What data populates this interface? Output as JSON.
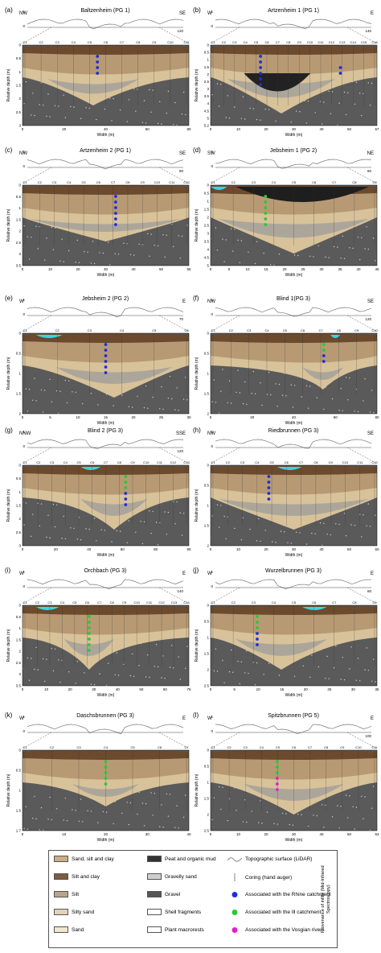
{
  "panels": [
    {
      "letter": "(a)",
      "title": "Baltzenheim (PG 1)",
      "left": "NW",
      "right": "SE",
      "coreTicks": [
        "C1",
        "C2",
        "C3",
        "C4",
        "C5",
        "C6",
        "C7",
        "C8",
        "C9",
        "C10",
        "C11"
      ],
      "xticks": [
        "0",
        "20",
        "40",
        "60",
        "80"
      ],
      "yticks": [
        "0",
        "0.5",
        "1",
        "1.5",
        "2",
        "2.5",
        "3"
      ],
      "xlabel": "Width (m)",
      "ylabel": "Relative depth (m)",
      "scaleEnd": "120",
      "ymax": "1.5"
    },
    {
      "letter": "(b)",
      "title": "Artzenheim 1 (PG 1)",
      "left": "W",
      "right": "E",
      "coreTicks": [
        "C1",
        "C2",
        "C3",
        "C4",
        "C5",
        "C6",
        "C7",
        "C8",
        "C9",
        "C10",
        "C11",
        "C12",
        "C13",
        "C14",
        "C15",
        "C16"
      ],
      "xticks": [
        "0",
        "10",
        "20",
        "30",
        "40",
        "50",
        "67"
      ],
      "yticks": [
        "0",
        "0.5",
        "1",
        "1.5",
        "2",
        "2.5",
        "3",
        "3.5",
        "4",
        "4.5",
        "5",
        "5.2"
      ],
      "xlabel": "Width (m)",
      "ylabel": "Relative depth (m)",
      "scaleEnd": "140",
      "ymax": "1"
    },
    {
      "letter": "(c)",
      "title": "Artzenheim 2 (PG 1)",
      "left": "NW",
      "right": "SE",
      "coreTicks": [
        "C1",
        "C2",
        "C3",
        "C4",
        "C5",
        "C6",
        "C7",
        "C8",
        "C9",
        "C10",
        "C11",
        "C12"
      ],
      "xticks": [
        "0",
        "10",
        "20",
        "30",
        "40",
        "50",
        "55"
      ],
      "yticks": [
        "0",
        "0.5",
        "1",
        "1.5",
        "2",
        "2.5",
        "3",
        "3.5"
      ],
      "xlabel": "Width (m)",
      "ylabel": "Relative depth (m)",
      "scaleEnd": "80",
      "ymax": "1"
    },
    {
      "letter": "(d)",
      "title": "Jebsheim 1 (PG 2)",
      "left": "SW",
      "right": "NE",
      "coreTicks": [
        "C1",
        "C2",
        "C3",
        "C4",
        "C5",
        "C6",
        "C7",
        "C8",
        "C9"
      ],
      "xticks": [
        "0",
        "5",
        "10",
        "15",
        "20",
        "25",
        "30",
        "35",
        "40",
        "45"
      ],
      "yticks": [
        "0",
        "0.5",
        "1",
        "1.5",
        "2",
        "2.5",
        "3",
        "3.5",
        "4",
        "4.5",
        "5"
      ],
      "xlabel": "Width (m)",
      "ylabel": "Relative depth (m)",
      "scaleEnd": "60",
      "ymax": "1"
    },
    {
      "letter": "(e)",
      "title": "Jebsheim 2 (PG 2)",
      "left": "W",
      "right": "E",
      "coreTicks": [
        "C1",
        "C2",
        "C3",
        "C4",
        "C5",
        "C6"
      ],
      "xticks": [
        "0",
        "5",
        "10",
        "15",
        "20",
        "25",
        "30"
      ],
      "yticks": [
        "0",
        "0.5",
        "1",
        "1.5",
        "2"
      ],
      "xlabel": "Width (m)",
      "ylabel": "Relative depth (m)",
      "scaleEnd": "70",
      "ymax": "1"
    },
    {
      "letter": "(f)",
      "title": "Blind 1(PG 3)",
      "left": "NW",
      "right": "SE",
      "coreTicks": [
        "C1",
        "C2",
        "C3",
        "C4",
        "C5",
        "C6",
        "C7",
        "C8",
        "C9",
        "C10"
      ],
      "xticks": [
        "0",
        "20",
        "40",
        "60",
        "80"
      ],
      "yticks": [
        "0",
        "0.5",
        "1",
        "1.5",
        "2"
      ],
      "xlabel": "Width (m)",
      "ylabel": "Relative depth (m)",
      "scaleEnd": "120",
      "ymax": "1.5"
    },
    {
      "letter": "(g)",
      "title": "Blind 2 (PG 3)",
      "left": "NNW",
      "right": "SSE",
      "coreTicks": [
        "C1",
        "C2",
        "C3",
        "C4",
        "C5",
        "C6",
        "C7",
        "C8",
        "C9",
        "C10",
        "C11",
        "C12",
        "C13"
      ],
      "xticks": [
        "0",
        "20",
        "40",
        "60",
        "80",
        "90"
      ],
      "yticks": [
        "0",
        "0.5",
        "1",
        "1.5",
        "2",
        "2.5",
        "3"
      ],
      "xlabel": "Width (m)",
      "ylabel": "Relative depth (m)",
      "scaleEnd": "120",
      "ymax": "1.5"
    },
    {
      "letter": "(h)",
      "title": "Riedbrunnen (PG 3)",
      "left": "NW",
      "right": "SE",
      "coreTicks": [
        "C1",
        "C2",
        "C3",
        "C4",
        "C5",
        "C6",
        "C7",
        "C8",
        "C9",
        "C10",
        "C11",
        "C12"
      ],
      "xticks": [
        "0",
        "10",
        "20",
        "30",
        "40",
        "50",
        "60"
      ],
      "yticks": [
        "0",
        "0.5",
        "1",
        "1.5",
        "2"
      ],
      "xlabel": "Width (m)",
      "ylabel": "Relative depth (m)",
      "scaleEnd": "",
      "ymax": "1"
    },
    {
      "letter": "(i)",
      "title": "Orchbach (PG 3)",
      "left": "W",
      "right": "E",
      "coreTicks": [
        "C1",
        "C2",
        "C3",
        "C4",
        "C5",
        "C6",
        "C7",
        "C8",
        "C9",
        "C10",
        "C11",
        "C12",
        "C13",
        "C14"
      ],
      "xticks": [
        "0",
        "10",
        "20",
        "30",
        "40",
        "50",
        "60",
        "76"
      ],
      "yticks": [
        "0",
        "0.5",
        "1",
        "1.5",
        "2",
        "2.5",
        "3",
        "3.5"
      ],
      "xlabel": "Width (m)",
      "ylabel": "Relative depth (m)",
      "scaleEnd": "140",
      "ymax": "1"
    },
    {
      "letter": "(j)",
      "title": "Wurzelbrunnen (PG 3)",
      "left": "W",
      "right": "E",
      "coreTicks": [
        "C1",
        "C2",
        "C3",
        "C4",
        "C5",
        "C6",
        "C7",
        "C8",
        "C9"
      ],
      "xticks": [
        "0",
        "5",
        "10",
        "15",
        "20",
        "25",
        "30",
        "35"
      ],
      "yticks": [
        "0",
        "0.5",
        "1",
        "1.5",
        "2",
        "2.5"
      ],
      "xlabel": "Width (m)",
      "ylabel": "Relative depth (m)",
      "scaleEnd": "60",
      "ymax": "1"
    },
    {
      "letter": "(k)",
      "title": "Daschsbrunnen (PG 3)",
      "left": "W",
      "right": "E",
      "coreTicks": [
        "C1",
        "C2",
        "C3",
        "C4",
        "C5",
        "C6",
        "C7"
      ],
      "xticks": [
        "0",
        "10",
        "20",
        "30",
        "40"
      ],
      "yticks": [
        "0",
        "0.5",
        "1",
        "1.5",
        "1.7"
      ],
      "xlabel": "Width (m)",
      "ylabel": "Relative depth (m)",
      "scaleEnd": "",
      "ymax": "1"
    },
    {
      "letter": "(l)",
      "title": "Spitzbrunnen (PG 5)",
      "left": "W",
      "right": "E",
      "coreTicks": [
        "C1",
        "C2",
        "C3",
        "C4",
        "C5",
        "C6",
        "C7",
        "C8",
        "C9",
        "C10",
        "C11"
      ],
      "xticks": [
        "0",
        "10",
        "20",
        "30",
        "40",
        "50",
        "63"
      ],
      "yticks": [
        "0",
        "0.5",
        "1",
        "1.5",
        "2",
        "2.5"
      ],
      "xlabel": "Width (m)",
      "ylabel": "Relative depth (m)",
      "scaleEnd": "100",
      "ymax": "1"
    }
  ],
  "legend": {
    "col1": [
      "Sand, silt and clay",
      "Silt and clay",
      "Silt",
      "Silty sand",
      "Sand"
    ],
    "col2": [
      "Peat and organic mud",
      "Gravelly sand",
      "Gravel",
      "Shell fragments",
      "Plant macrorests"
    ],
    "col3": [
      "Topographic surface (LiDAR)",
      "Coring (hand auger)",
      "Associated with the Rhine catchment",
      "Associated with the Ill catchment",
      "Associated with the Vosgian rivers"
    ],
    "provenance": "Provenance of infills (Mid-Infrared Spectroscopy)",
    "colors": {
      "rhine": "#1f2fd6",
      "ill": "#2cc63a",
      "vosgian": "#e020c8",
      "brown": "#6b4a2e",
      "tan": "#d8c29a",
      "gravel": "#555555",
      "water": "#39d6e0"
    }
  }
}
